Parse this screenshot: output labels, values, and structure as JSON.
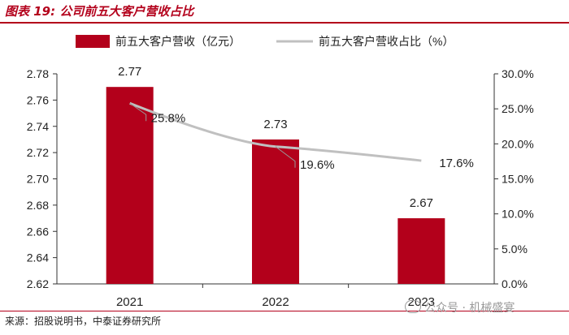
{
  "header": {
    "title": "图表 19: 公司前五大客户营收占比"
  },
  "source_text": "来源：招股说明书，中泰证券研究所",
  "watermark": {
    "icon": "wechat-icon",
    "text": "公众号 · 机械盛宴"
  },
  "colors": {
    "bar": "#b3001b",
    "line": "#c0c0c0",
    "accent": "#b3001b"
  },
  "chart_data": {
    "type": "bar",
    "categories": [
      "2021",
      "2022",
      "2023"
    ],
    "series": [
      {
        "name": "前五大客户营收（亿元）",
        "type": "bar",
        "axis": "left",
        "values": [
          2.77,
          2.73,
          2.67
        ],
        "labels": [
          "2.77",
          "2.73",
          "2.67"
        ]
      },
      {
        "name": "前五大客户营收占比（%）",
        "type": "line",
        "axis": "right",
        "values": [
          25.8,
          19.6,
          17.6
        ],
        "labels": [
          "25.8%",
          "19.6%",
          "17.6%"
        ]
      }
    ],
    "y_left": {
      "min": 2.62,
      "max": 2.78,
      "step": 0.02,
      "ticks": [
        "2.62",
        "2.64",
        "2.66",
        "2.68",
        "2.70",
        "2.72",
        "2.74",
        "2.76",
        "2.78"
      ]
    },
    "y_right": {
      "min": 0,
      "max": 30,
      "step": 5,
      "ticks": [
        "0.0%",
        "5.0%",
        "10.0%",
        "15.0%",
        "20.0%",
        "25.0%",
        "30.0%"
      ]
    },
    "legend_position": "top",
    "grid": false
  }
}
